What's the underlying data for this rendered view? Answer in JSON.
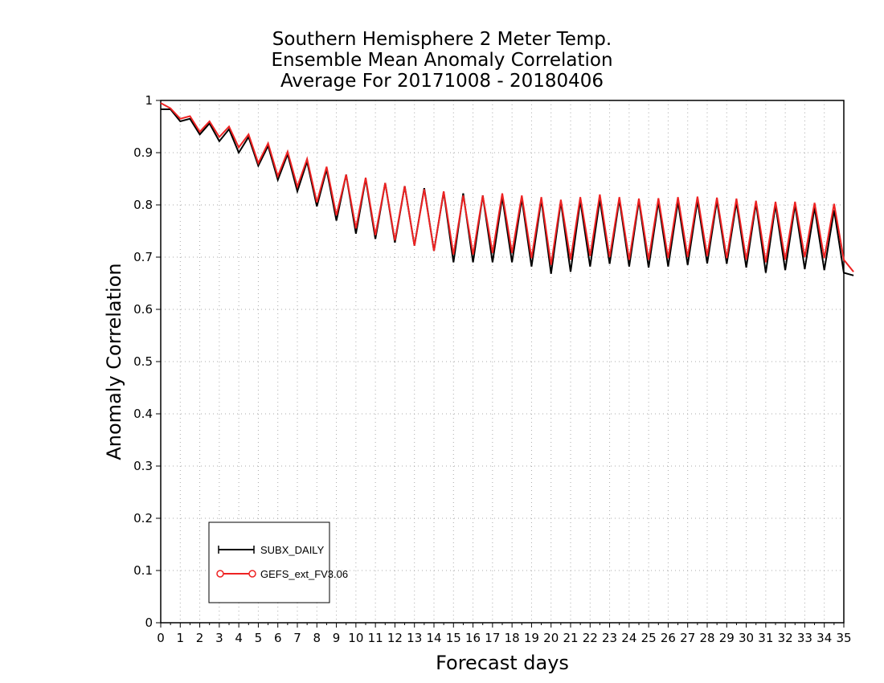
{
  "chart_data": {
    "type": "line",
    "title": [
      "Southern Hemisphere 2 Meter Temp.",
      "Ensemble Mean Anomaly Correlation",
      "Average For 20171008 - 20180406"
    ],
    "xlabel": "Forecast days",
    "ylabel": "Anomaly Correlation",
    "xlim": [
      0,
      35
    ],
    "ylim": [
      0,
      1
    ],
    "xticks": [
      "0",
      "1",
      "2",
      "3",
      "4",
      "5",
      "6",
      "7",
      "8",
      "9",
      "10",
      "11",
      "12",
      "13",
      "14",
      "15",
      "16",
      "17",
      "18",
      "19",
      "20",
      "21",
      "22",
      "23",
      "24",
      "25",
      "26",
      "27",
      "28",
      "29",
      "30",
      "31",
      "32",
      "33",
      "34",
      "35"
    ],
    "yticks": [
      "0",
      "0.1",
      "0.2",
      "0.3",
      "0.4",
      "0.5",
      "0.6",
      "0.7",
      "0.8",
      "0.9",
      "1"
    ],
    "grid": true,
    "legend_position": "bottom-left",
    "x_step": 0.5,
    "series": [
      {
        "name": "SUBX_DAILY",
        "color": "#000000",
        "marker": "plus",
        "values": [
          0.983,
          0.983,
          0.96,
          0.965,
          0.935,
          0.956,
          0.922,
          0.945,
          0.9,
          0.93,
          0.875,
          0.913,
          0.848,
          0.897,
          0.826,
          0.883,
          0.797,
          0.868,
          0.77,
          0.858,
          0.745,
          0.85,
          0.735,
          0.842,
          0.728,
          0.836,
          0.722,
          0.832,
          0.712,
          0.825,
          0.69,
          0.822,
          0.69,
          0.818,
          0.69,
          0.815,
          0.69,
          0.812,
          0.682,
          0.81,
          0.668,
          0.806,
          0.672,
          0.808,
          0.682,
          0.81,
          0.687,
          0.81,
          0.682,
          0.808,
          0.68,
          0.806,
          0.682,
          0.806,
          0.685,
          0.808,
          0.688,
          0.808,
          0.687,
          0.805,
          0.68,
          0.803,
          0.67,
          0.8,
          0.675,
          0.8,
          0.677,
          0.795,
          0.675,
          0.79,
          0.67,
          0.665
        ]
      },
      {
        "name": "GEFS_ext_FV3.06",
        "color": "#ee2222",
        "marker": "circle",
        "values": [
          0.995,
          0.985,
          0.965,
          0.97,
          0.94,
          0.96,
          0.93,
          0.95,
          0.91,
          0.935,
          0.88,
          0.918,
          0.855,
          0.902,
          0.835,
          0.888,
          0.805,
          0.873,
          0.78,
          0.858,
          0.755,
          0.852,
          0.742,
          0.842,
          0.732,
          0.836,
          0.722,
          0.83,
          0.712,
          0.826,
          0.705,
          0.818,
          0.705,
          0.818,
          0.708,
          0.822,
          0.708,
          0.818,
          0.698,
          0.815,
          0.685,
          0.81,
          0.695,
          0.815,
          0.702,
          0.82,
          0.7,
          0.815,
          0.695,
          0.812,
          0.695,
          0.813,
          0.698,
          0.815,
          0.7,
          0.816,
          0.702,
          0.814,
          0.698,
          0.812,
          0.695,
          0.808,
          0.69,
          0.806,
          0.695,
          0.806,
          0.7,
          0.804,
          0.698,
          0.802,
          0.695,
          0.672
        ]
      }
    ]
  }
}
